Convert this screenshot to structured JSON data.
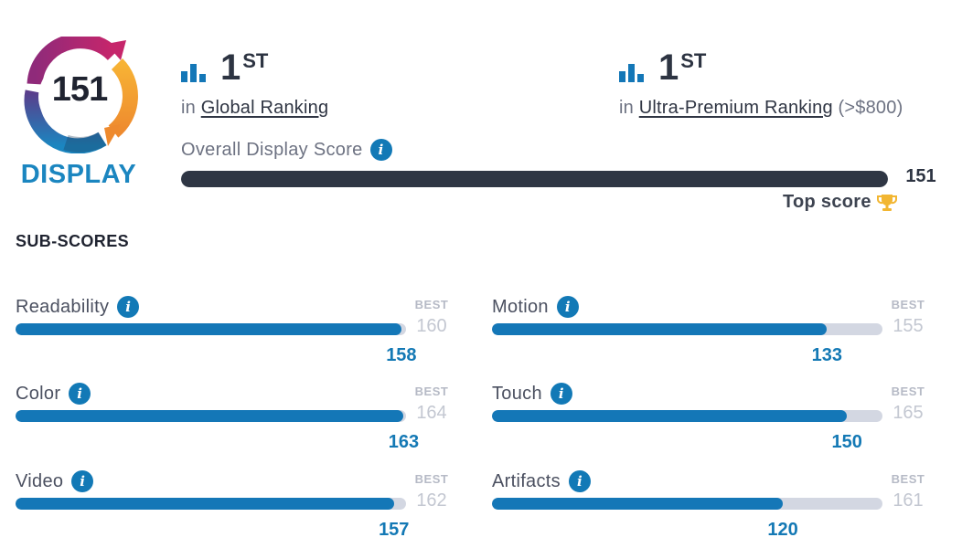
{
  "badge": {
    "score": "151",
    "label": "DISPLAY",
    "colors": [
      "#c6266b",
      "#8f2a7a",
      "#f4a237",
      "#1b86c0"
    ]
  },
  "rankings": [
    {
      "icon": "bar-chart-icon",
      "number": "1",
      "suffix": "ST",
      "prefix": "in",
      "link": "Global Ranking",
      "note": ""
    },
    {
      "icon": "bar-chart-icon",
      "number": "1",
      "suffix": "ST",
      "prefix": "in",
      "link": "Ultra-Premium Ranking",
      "note": "(>$800)"
    }
  ],
  "overall": {
    "label": "Overall Display Score",
    "value": "151",
    "fill_fraction": 1.0,
    "top_score_label": "Top score",
    "top_score_icon": "trophy-icon"
  },
  "subscores": {
    "title": "SUB-SCORES",
    "best_label": "BEST",
    "items": [
      {
        "label": "Readability",
        "score": "158",
        "best": "160",
        "fill_fraction": 0.988
      },
      {
        "label": "Color",
        "score": "163",
        "best": "164",
        "fill_fraction": 0.994
      },
      {
        "label": "Video",
        "score": "157",
        "best": "162",
        "fill_fraction": 0.969
      },
      {
        "label": "Motion",
        "score": "133",
        "best": "155",
        "fill_fraction": 0.858
      },
      {
        "label": "Touch",
        "score": "150",
        "best": "165",
        "fill_fraction": 0.909
      },
      {
        "label": "Artifacts",
        "score": "120",
        "best": "161",
        "fill_fraction": 0.745
      }
    ]
  },
  "colors": {
    "accent_blue": "#1477b7",
    "dark_bar": "#2f3644",
    "track": "#d3d7e2",
    "trophy": "#f2b632"
  }
}
